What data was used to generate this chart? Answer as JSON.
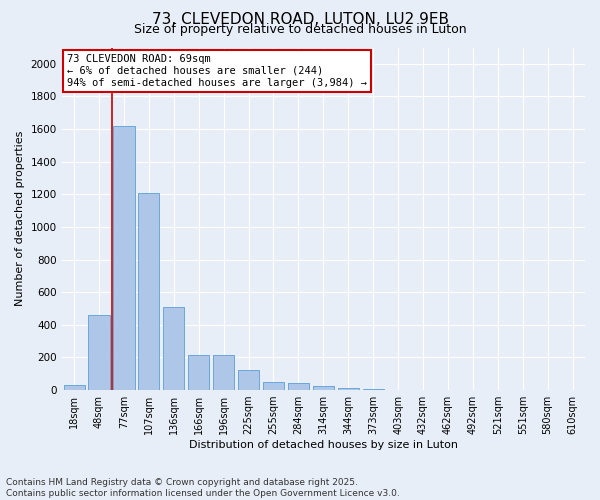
{
  "title": "73, CLEVEDON ROAD, LUTON, LU2 9EB",
  "subtitle": "Size of property relative to detached houses in Luton",
  "xlabel": "Distribution of detached houses by size in Luton",
  "ylabel": "Number of detached properties",
  "categories": [
    "18sqm",
    "48sqm",
    "77sqm",
    "107sqm",
    "136sqm",
    "166sqm",
    "196sqm",
    "225sqm",
    "255sqm",
    "284sqm",
    "314sqm",
    "344sqm",
    "373sqm",
    "403sqm",
    "432sqm",
    "462sqm",
    "492sqm",
    "521sqm",
    "551sqm",
    "580sqm",
    "610sqm"
  ],
  "values": [
    30,
    460,
    1620,
    1210,
    510,
    215,
    215,
    125,
    50,
    45,
    28,
    15,
    8,
    0,
    0,
    0,
    0,
    0,
    0,
    0,
    0
  ],
  "bar_color": "#aec6e8",
  "bar_edge_color": "#5a9fd4",
  "vline_color": "#cc0000",
  "annotation_text": "73 CLEVEDON ROAD: 69sqm\n← 6% of detached houses are smaller (244)\n94% of semi-detached houses are larger (3,984) →",
  "annotation_box_color": "#ffffff",
  "annotation_box_edge_color": "#cc0000",
  "ylim": [
    0,
    2100
  ],
  "yticks": [
    0,
    200,
    400,
    600,
    800,
    1000,
    1200,
    1400,
    1600,
    1800,
    2000
  ],
  "background_color": "#e8eef8",
  "grid_color": "#ffffff",
  "footer_line1": "Contains HM Land Registry data © Crown copyright and database right 2025.",
  "footer_line2": "Contains public sector information licensed under the Open Government Licence v3.0.",
  "title_fontsize": 11,
  "subtitle_fontsize": 9,
  "annotation_fontsize": 7.5,
  "ylabel_fontsize": 8,
  "xlabel_fontsize": 8,
  "tick_fontsize": 7,
  "ytick_fontsize": 7.5,
  "footer_fontsize": 6.5
}
